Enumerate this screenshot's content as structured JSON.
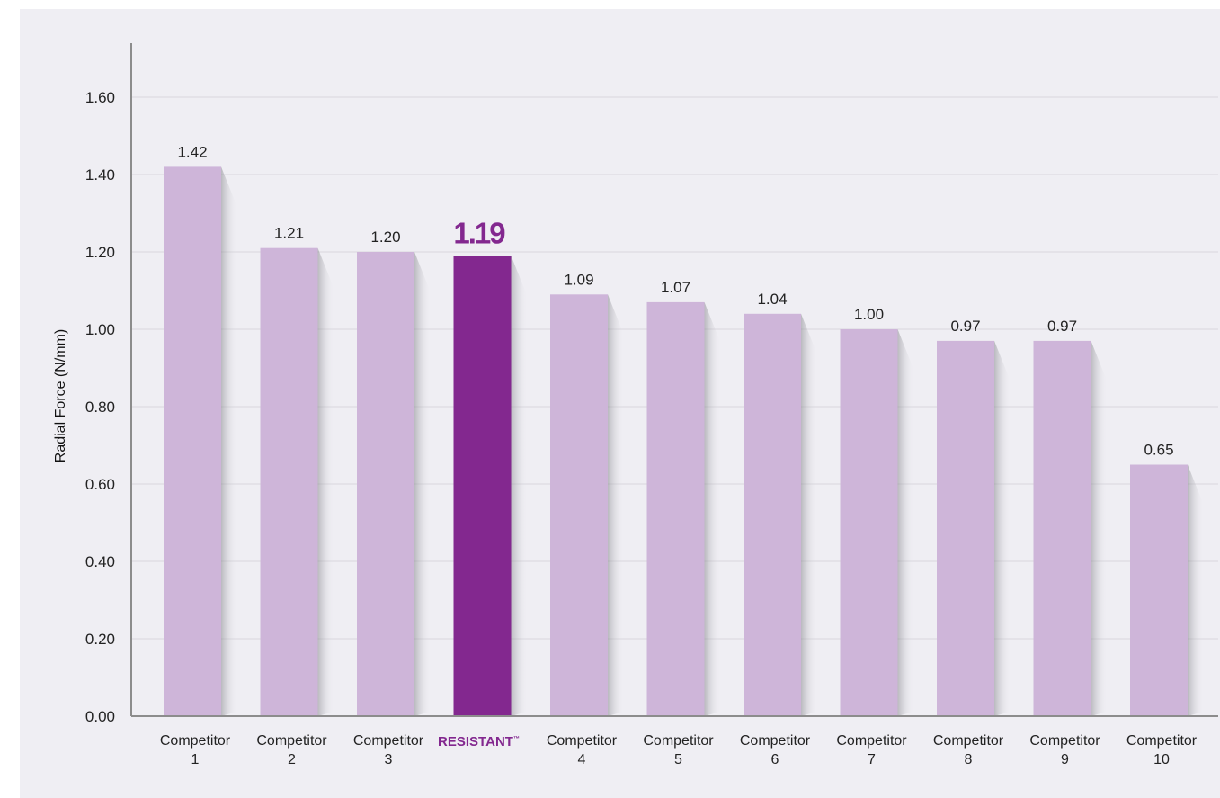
{
  "chart_data": {
    "type": "bar",
    "title": "",
    "xlabel": "",
    "ylabel": "Radial Force  (N/mm)",
    "ylim": [
      0,
      1.7
    ],
    "yticks": [
      "0.00",
      "0.20",
      "0.40",
      "0.60",
      "0.80",
      "1.00",
      "1.20",
      "1.40",
      "1.60"
    ],
    "categories": [
      [
        "Competitor",
        "1"
      ],
      [
        "Competitor",
        "2"
      ],
      [
        "Competitor",
        "3"
      ],
      [
        "RESISTANT",
        ""
      ],
      [
        "Competitor",
        "4"
      ],
      [
        "Competitor",
        "5"
      ],
      [
        "Competitor",
        "6"
      ],
      [
        "Competitor",
        "7"
      ],
      [
        "Competitor",
        "8"
      ],
      [
        "Competitor",
        "9"
      ],
      [
        "Competitor",
        "10"
      ]
    ],
    "trademark": "™",
    "values": [
      1.42,
      1.21,
      1.2,
      1.19,
      1.09,
      1.07,
      1.04,
      1.0,
      0.97,
      0.97,
      0.65
    ],
    "value_labels": [
      "1.42",
      "1.21",
      "1.20",
      "1.19",
      "1.09",
      "1.07",
      "1.04",
      "1.00",
      "0.97",
      "0.97",
      "0.65"
    ],
    "highlight_index": 3,
    "grid": true,
    "colors": {
      "bar": "#ceb5d9",
      "highlight": "#83288f",
      "grid": "#d8d6dd",
      "axis": "#8c8c8c",
      "background": "#efeef3"
    }
  }
}
